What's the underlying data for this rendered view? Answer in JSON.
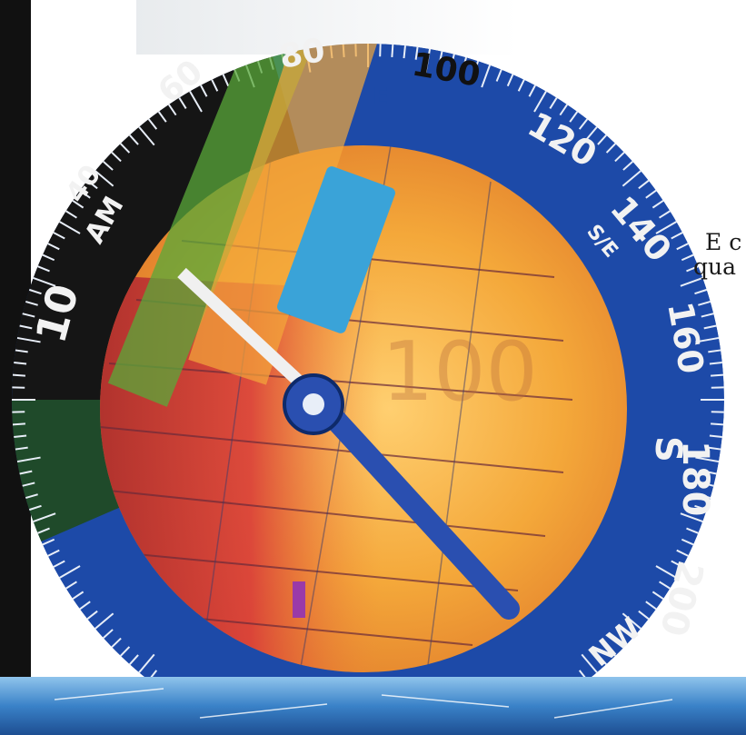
{
  "side_text": {
    "line1": "E c",
    "line2": "qua"
  },
  "dial": {
    "degree_labels": [
      "60",
      "80",
      "100",
      "120",
      "140",
      "160",
      "180",
      "200"
    ],
    "letters": [
      "E",
      "S",
      "S/E",
      "NW"
    ],
    "am_label": "AM",
    "left_labels": [
      "40",
      "10",
      "AM"
    ],
    "digits_watermark": "100",
    "colors": {
      "bezel_blue": "#1d4aa8",
      "face_orange": "#f4a83a",
      "face_red": "#c8302c",
      "needle_blue": "#2a4fb0",
      "bezel_black": "#151515",
      "water": "#3a82c8"
    }
  }
}
